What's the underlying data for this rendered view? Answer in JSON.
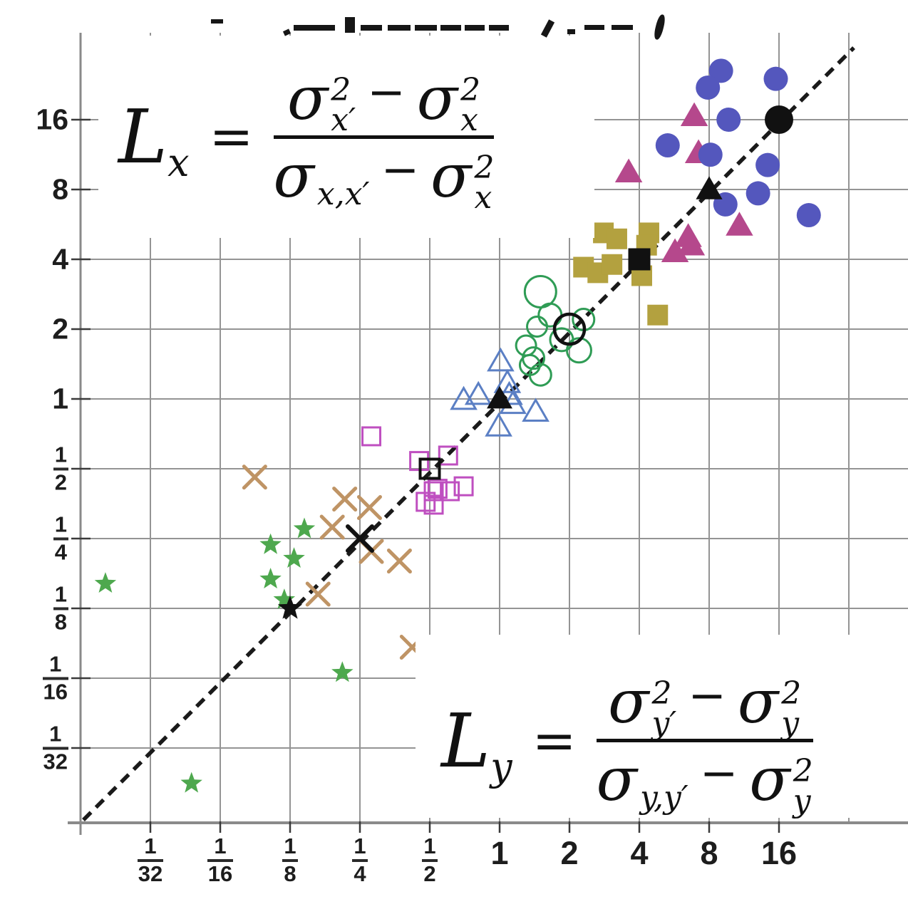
{
  "figure": {
    "background": "#ffffff",
    "top_title_cropped": true
  },
  "formulas": {
    "lx": {
      "lhs": {
        "base": "L",
        "sub": "x"
      },
      "equals": "=",
      "numerator": [
        {
          "base": "σ",
          "sup": "2",
          "sub": "x′"
        },
        {
          "op": "−"
        },
        {
          "base": "σ",
          "sup": "2",
          "sub": "x"
        }
      ],
      "denominator": [
        {
          "base": "σ",
          "sub": "x,x′"
        },
        {
          "op": "−"
        },
        {
          "base": "σ",
          "sup": "2",
          "sub": "x"
        }
      ]
    },
    "ly": {
      "lhs": {
        "base": "L",
        "sub": "y"
      },
      "equals": "=",
      "numerator": [
        {
          "base": "σ",
          "sup": "2",
          "sub": "y′"
        },
        {
          "op": "−"
        },
        {
          "base": "σ",
          "sup": "2",
          "sub": "y"
        }
      ],
      "denominator": [
        {
          "base": "σ",
          "sub": "y,y′"
        },
        {
          "op": "−"
        },
        {
          "base": "σ",
          "sup": "2",
          "sub": "y"
        }
      ]
    }
  },
  "axes": {
    "x_ticks": [
      {
        "num": "1",
        "den": "32",
        "value": 0.03125
      },
      {
        "num": "1",
        "den": "16",
        "value": 0.0625
      },
      {
        "num": "1",
        "den": "8",
        "value": 0.125
      },
      {
        "num": "1",
        "den": "4",
        "value": 0.25
      },
      {
        "num": "1",
        "den": "2",
        "value": 0.5
      },
      {
        "label": "1",
        "value": 1
      },
      {
        "label": "2",
        "value": 2
      },
      {
        "label": "4",
        "value": 4
      },
      {
        "label": "8",
        "value": 8
      },
      {
        "label": "16",
        "value": 16
      }
    ],
    "y_ticks": [
      {
        "label": "16",
        "value": 16
      },
      {
        "label": "8",
        "value": 8
      },
      {
        "label": "4",
        "value": 4
      },
      {
        "label": "2",
        "value": 2
      },
      {
        "label": "1",
        "value": 1
      },
      {
        "num": "1",
        "den": "2",
        "value": 0.5
      },
      {
        "num": "1",
        "den": "4",
        "value": 0.25
      },
      {
        "num": "1",
        "den": "8",
        "value": 0.125
      },
      {
        "num": "1",
        "den": "16",
        "value": 0.0625
      },
      {
        "num": "1",
        "den": "32",
        "value": 0.03125
      }
    ],
    "x_grid_extra": [
      32
    ],
    "grid_color": "#949494",
    "axis_color": "#8a8a8a",
    "tick_color": "#3a3a3a"
  },
  "chart_data": {
    "type": "scatter",
    "x_scale": "log2",
    "y_scale": "log2",
    "x_range": [
      0.02,
      32
    ],
    "y_range": [
      0.02,
      28
    ],
    "grid": true,
    "reference_line": {
      "type": "identity y=x",
      "style": "dashed",
      "color": "#1a1a1a"
    },
    "series": [
      {
        "name": "magenta-filled-triangles",
        "marker": "triangle-filled",
        "color": "#b5488c",
        "size": 31,
        "points": [
          [
            6.9,
            16.6
          ],
          [
            7.2,
            11.5
          ],
          [
            3.6,
            9.5
          ],
          [
            10.8,
            5.6
          ],
          [
            6.5,
            5.0
          ],
          [
            6.7,
            4.6
          ],
          [
            5.7,
            4.3
          ]
        ]
      },
      {
        "name": "blue-filled-circles",
        "marker": "circle-filled",
        "color": "#5457bd",
        "size": 17,
        "points": [
          [
            9,
            26
          ],
          [
            7.9,
            22
          ],
          [
            15.5,
            24
          ],
          [
            9.7,
            16
          ],
          [
            5.3,
            12.4
          ],
          [
            8.1,
            11.3
          ],
          [
            14.3,
            10.2
          ],
          [
            13,
            7.7
          ],
          [
            9.4,
            6.9
          ],
          [
            21.5,
            6.2
          ]
        ]
      },
      {
        "name": "olive-filled-squares",
        "marker": "square-filled",
        "color": "#b3a13f",
        "size": 29,
        "points": [
          [
            2.8,
            5.2
          ],
          [
            4.4,
            5.2
          ],
          [
            3.2,
            4.9
          ],
          [
            4.3,
            4.6
          ],
          [
            2.3,
            3.7
          ],
          [
            2.65,
            3.5
          ],
          [
            3.05,
            3.8
          ],
          [
            4.1,
            3.4
          ],
          [
            4.8,
            2.3
          ]
        ]
      },
      {
        "name": "green-open-circles",
        "marker": "circle-open",
        "color": "#2f9c55",
        "size": 16,
        "stroke_width": 3,
        "points": [
          [
            1.5,
            2.9,
            22
          ],
          [
            1.65,
            2.3,
            16
          ],
          [
            2.3,
            2.2,
            15
          ],
          [
            1.45,
            2.05,
            14
          ],
          [
            1.85,
            1.8,
            16
          ],
          [
            1.3,
            1.7,
            14
          ],
          [
            2.2,
            1.62,
            17
          ],
          [
            1.4,
            1.5,
            15
          ],
          [
            1.35,
            1.4,
            14
          ],
          [
            1.5,
            1.27,
            15
          ]
        ]
      },
      {
        "name": "blue-open-triangles",
        "marker": "triangle-open",
        "color": "#5b7fc4",
        "size": 27,
        "stroke_width": 3,
        "points": [
          [
            1.01,
            1.45
          ],
          [
            1.08,
            1.17
          ],
          [
            0.7,
            0.99
          ],
          [
            0.81,
            1.04
          ],
          [
            1.1,
            1.04
          ],
          [
            1.14,
            0.95
          ],
          [
            1.43,
            0.88
          ],
          [
            0.99,
            0.76
          ]
        ]
      },
      {
        "name": "magenta-open-squares",
        "marker": "square-open",
        "color": "#bf4fc0",
        "size": 25,
        "stroke_width": 3,
        "points": [
          [
            0.28,
            0.69
          ],
          [
            0.45,
            0.54
          ],
          [
            0.6,
            0.57
          ],
          [
            0.7,
            0.42
          ],
          [
            0.54,
            0.41
          ],
          [
            0.61,
            0.4
          ],
          [
            0.52,
            0.4
          ],
          [
            0.48,
            0.36
          ],
          [
            0.52,
            0.35
          ]
        ]
      },
      {
        "name": "tan-x-marks",
        "marker": "x",
        "color": "#bf9465",
        "size": 15,
        "stroke_width": 5,
        "points": [
          [
            0.088,
            0.46
          ],
          [
            0.215,
            0.37
          ],
          [
            0.275,
            0.34
          ],
          [
            0.19,
            0.28
          ],
          [
            0.28,
            0.22
          ],
          [
            0.37,
            0.2
          ],
          [
            0.165,
            0.144
          ],
          [
            0.42,
            0.085
          ]
        ]
      },
      {
        "name": "green-stars",
        "marker": "star",
        "color": "#4ea84e",
        "size": 16,
        "points": [
          [
            0.02,
            0.16
          ],
          [
            0.144,
            0.275
          ],
          [
            0.103,
            0.235
          ],
          [
            0.13,
            0.205
          ],
          [
            0.103,
            0.167
          ],
          [
            0.118,
            0.136
          ],
          [
            0.21,
            0.066
          ],
          [
            0.047,
            0.022
          ]
        ]
      },
      {
        "name": "black-median-markers",
        "marker": "mixed",
        "color": "#111111",
        "points_detail": [
          {
            "marker": "circle-filled",
            "x": 16,
            "y": 16,
            "size": 20
          },
          {
            "marker": "triangle-filled",
            "x": 8,
            "y": 8,
            "size": 30
          },
          {
            "marker": "square-filled",
            "x": 4,
            "y": 4,
            "size": 31
          },
          {
            "marker": "circle-open",
            "x": 2,
            "y": 2,
            "size": 21,
            "stroke_width": 4.5
          },
          {
            "marker": "triangle-filled",
            "x": 1,
            "y": 1,
            "size": 29
          },
          {
            "marker": "square-open",
            "x": 0.5,
            "y": 0.5,
            "size": 27,
            "stroke_width": 4
          },
          {
            "marker": "x",
            "x": 0.25,
            "y": 0.25,
            "size": 17,
            "stroke_width": 6
          },
          {
            "marker": "star",
            "x": 0.125,
            "y": 0.125,
            "size": 18
          }
        ]
      }
    ]
  }
}
